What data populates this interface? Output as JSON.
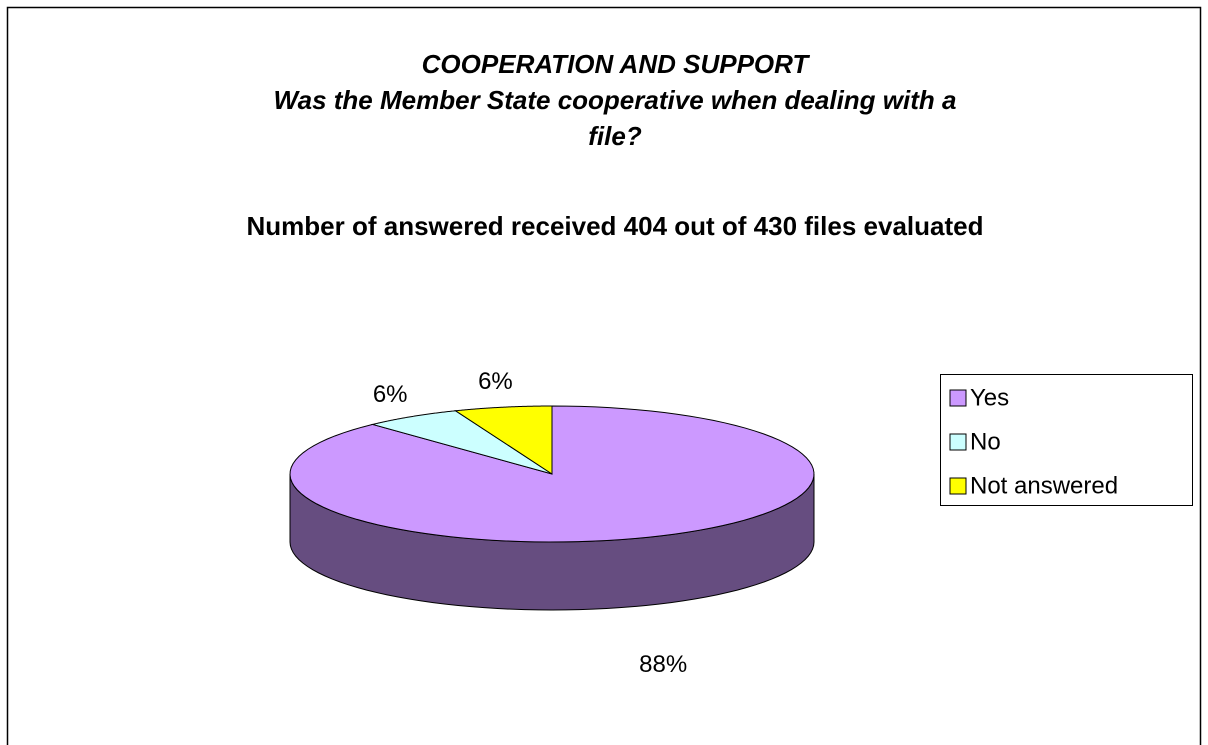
{
  "chart_data": {
    "type": "pie",
    "title": "COOPERATION AND SUPPORT",
    "subtitle": "Was the Member State cooperative when dealing with a file?",
    "annotations": [
      "Number of answered received 404 out of 430 files evaluated"
    ],
    "categories": [
      "Yes",
      "No",
      "Not answered"
    ],
    "values": [
      88,
      6,
      6
    ],
    "value_labels": [
      "88%",
      "6%",
      "6%"
    ],
    "colors": [
      "#cc99ff",
      "#ccffff",
      "#ffff00"
    ],
    "legend": "right"
  }
}
